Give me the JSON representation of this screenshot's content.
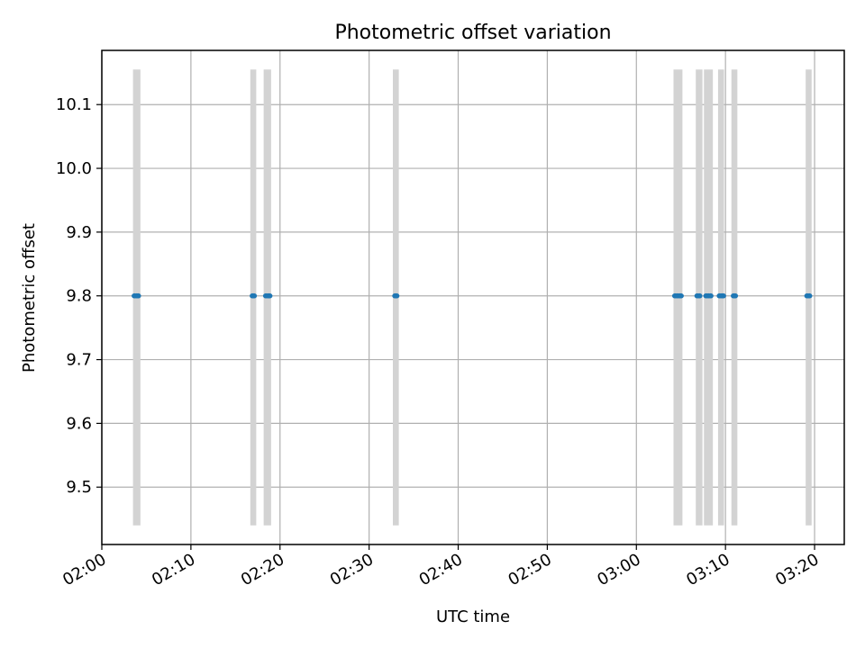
{
  "chart_data": {
    "type": "scatter",
    "title": "Photometric offset variation",
    "xlabel": "UTC time",
    "ylabel": "Photometric offset",
    "x_ticks": [
      "02:00",
      "02:10",
      "02:20",
      "02:30",
      "02:40",
      "02:50",
      "03:00",
      "03:10",
      "03:20"
    ],
    "y_ticks": [
      "9.5",
      "9.6",
      "9.7",
      "9.8",
      "9.9",
      "10.0",
      "10.1"
    ],
    "y_tick_values": [
      9.5,
      9.6,
      9.7,
      9.8,
      9.9,
      10.0,
      10.1
    ],
    "xlim": [
      "02:00:00",
      "03:23:20"
    ],
    "ylim": [
      9.41,
      10.185
    ],
    "grid": true,
    "colors": {
      "points": "#1f77b4",
      "bands": "#d3d3d3",
      "grid": "#b0b0b0"
    },
    "bands": [
      {
        "start": "02:03:30",
        "end": "02:04:20",
        "ymin": 9.44,
        "ymax": 10.155
      },
      {
        "start": "02:16:40",
        "end": "02:17:20",
        "ymin": 9.44,
        "ymax": 10.155
      },
      {
        "start": "02:18:10",
        "end": "02:19:00",
        "ymin": 9.44,
        "ymax": 10.155
      },
      {
        "start": "02:32:40",
        "end": "02:33:20",
        "ymin": 9.44,
        "ymax": 10.155
      },
      {
        "start": "03:04:10",
        "end": "03:05:10",
        "ymin": 9.44,
        "ymax": 10.155
      },
      {
        "start": "03:06:40",
        "end": "03:07:25",
        "ymin": 9.44,
        "ymax": 10.155
      },
      {
        "start": "03:07:35",
        "end": "03:08:35",
        "ymin": 9.44,
        "ymax": 10.155
      },
      {
        "start": "03:09:10",
        "end": "03:09:50",
        "ymin": 9.44,
        "ymax": 10.155
      },
      {
        "start": "03:10:40",
        "end": "03:11:20",
        "ymin": 9.44,
        "ymax": 10.155
      },
      {
        "start": "03:19:00",
        "end": "03:19:40",
        "ymin": 9.44,
        "ymax": 10.155
      }
    ],
    "points": [
      {
        "x": "02:03:40",
        "y": 9.8
      },
      {
        "x": "02:03:55",
        "y": 9.8
      },
      {
        "x": "02:04:05",
        "y": 9.8
      },
      {
        "x": "02:16:55",
        "y": 9.8
      },
      {
        "x": "02:17:05",
        "y": 9.8
      },
      {
        "x": "02:18:25",
        "y": 9.8
      },
      {
        "x": "02:18:40",
        "y": 9.8
      },
      {
        "x": "02:18:50",
        "y": 9.8
      },
      {
        "x": "02:32:55",
        "y": 9.8
      },
      {
        "x": "02:33:05",
        "y": 9.8
      },
      {
        "x": "03:04:20",
        "y": 9.8
      },
      {
        "x": "03:04:35",
        "y": 9.8
      },
      {
        "x": "03:04:50",
        "y": 9.8
      },
      {
        "x": "03:05:00",
        "y": 9.8
      },
      {
        "x": "03:06:50",
        "y": 9.8
      },
      {
        "x": "03:07:05",
        "y": 9.8
      },
      {
        "x": "03:07:50",
        "y": 9.8
      },
      {
        "x": "03:08:05",
        "y": 9.8
      },
      {
        "x": "03:08:20",
        "y": 9.8
      },
      {
        "x": "03:09:20",
        "y": 9.8
      },
      {
        "x": "03:09:35",
        "y": 9.8
      },
      {
        "x": "03:09:45",
        "y": 9.8
      },
      {
        "x": "03:10:55",
        "y": 9.8
      },
      {
        "x": "03:11:05",
        "y": 9.8
      },
      {
        "x": "03:19:10",
        "y": 9.8
      },
      {
        "x": "03:19:25",
        "y": 9.8
      }
    ]
  }
}
